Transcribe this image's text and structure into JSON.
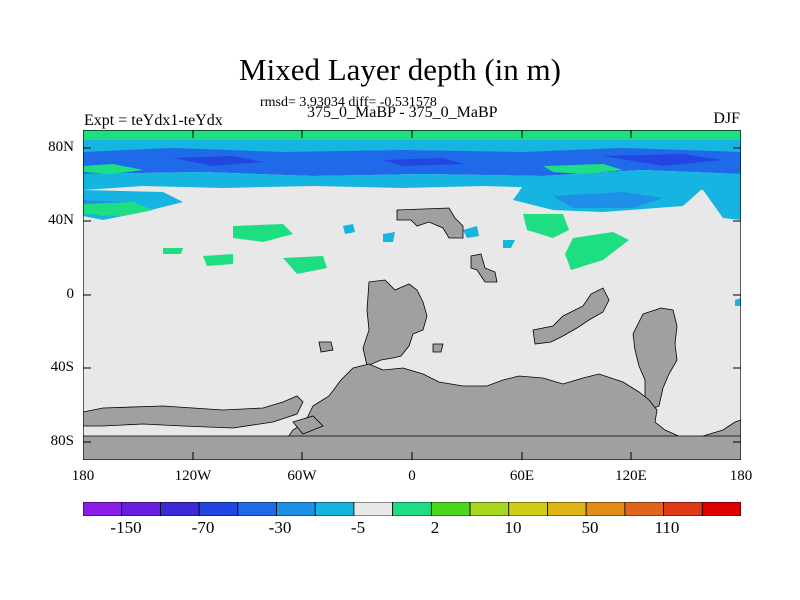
{
  "title": "Mixed Layer depth (in m)",
  "stats_line": "rmsd= 3.93034 diff= -0.531578",
  "left_label": "Expt = teYdx1-teYdx",
  "center_label": "375_0_MaBP - 375_0_MaBP",
  "right_label": "DJF",
  "lat_labels": [
    "80N",
    "40N",
    "0",
    "40S",
    "80S"
  ],
  "lon_labels": [
    "180",
    "120W",
    "60W",
    "0",
    "60E",
    "120E",
    "180"
  ],
  "colorbar": {
    "colors": [
      "#8a1ee6",
      "#6a1fe0",
      "#3a2bd6",
      "#2346e2",
      "#1e6ae8",
      "#1e90e8",
      "#16b4e0",
      "#e8e8e8",
      "#1ede82",
      "#4bd61e",
      "#a8d61e",
      "#d2cc16",
      "#deb416",
      "#e08c16",
      "#e0641e",
      "#e03a16",
      "#e00000"
    ],
    "labels": [
      "-150",
      "-70",
      "-30",
      "-5",
      "2",
      "10",
      "50",
      "110"
    ]
  },
  "colors": {
    "land": "#a0a0a0",
    "ocean_neutral": "#e8e8e8",
    "strong_negative": "#1e6ae8",
    "mid_negative": "#1e90e8",
    "weak_negative": "#16b4e0",
    "weak_positive": "#1ede82",
    "mid_positive": "#4bd61e",
    "deep_negative": "#2346e2"
  }
}
